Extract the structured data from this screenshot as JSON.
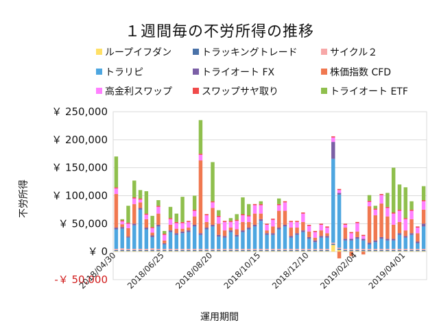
{
  "chart_data": {
    "type": "bar",
    "stacked": true,
    "title": "１週間毎の不労所得の推移",
    "xlabel": "運用期間",
    "ylabel": "不労所得",
    "ylim": [
      -50000,
      250000
    ],
    "yticks": [
      {
        "value": 250000,
        "label": "￥ 250,000"
      },
      {
        "value": 200000,
        "label": "￥ 200,000"
      },
      {
        "value": 150000,
        "label": "￥ 150,000"
      },
      {
        "value": 100000,
        "label": "￥ 100,000"
      },
      {
        "value": 50000,
        "label": "￥ 50,000"
      },
      {
        "value": 0,
        "label": "￥ 0"
      },
      {
        "value": -50000,
        "label": "-￥ 50,000"
      }
    ],
    "grid": true,
    "legend_position": "top",
    "xtick_labels": [
      {
        "index": 0,
        "label": "2018/04/30"
      },
      {
        "index": 8,
        "label": "2018/06/25"
      },
      {
        "index": 16,
        "label": "2018/08/20"
      },
      {
        "index": 24,
        "label": "2018/10/15"
      },
      {
        "index": 32,
        "label": "2018/12/10"
      },
      {
        "index": 40,
        "label": "2019/02/04"
      },
      {
        "index": 48,
        "label": "2019/04/01"
      }
    ],
    "categories": [
      "2018/04/30",
      "2018/05/07",
      "2018/05/14",
      "2018/05/21",
      "2018/05/28",
      "2018/06/04",
      "2018/06/11",
      "2018/06/18",
      "2018/06/25",
      "2018/07/02",
      "2018/07/09",
      "2018/07/16",
      "2018/07/23",
      "2018/07/30",
      "2018/08/06",
      "2018/08/13",
      "2018/08/20",
      "2018/08/27",
      "2018/09/03",
      "2018/09/10",
      "2018/09/17",
      "2018/09/24",
      "2018/10/01",
      "2018/10/08",
      "2018/10/15",
      "2018/10/22",
      "2018/10/29",
      "2018/11/05",
      "2018/11/12",
      "2018/11/19",
      "2018/11/26",
      "2018/12/03",
      "2018/12/10",
      "2018/12/17",
      "2018/12/24",
      "2018/12/31",
      "2019/01/07",
      "2019/01/14",
      "2019/01/21",
      "2019/01/28",
      "2019/02/04",
      "2019/02/11",
      "2019/02/18",
      "2019/02/25",
      "2019/03/04",
      "2019/03/11",
      "2019/03/18",
      "2019/03/25",
      "2019/04/01",
      "2019/04/08",
      "2019/04/15",
      "2019/04/22"
    ],
    "series": [
      {
        "name": "ループイフダン",
        "color": "#ffe066",
        "values": [
          1000,
          1000,
          1000,
          1000,
          1000,
          1000,
          1000,
          1000,
          1000,
          1000,
          1000,
          1000,
          1000,
          1000,
          1000,
          1000,
          1000,
          1000,
          1000,
          1000,
          1000,
          1000,
          1000,
          1000,
          1000,
          1000,
          1000,
          1000,
          1000,
          1000,
          1000,
          1000,
          1000,
          1000,
          1000,
          1000,
          12000,
          3000,
          1000,
          1000,
          1000,
          1000,
          1000,
          1000,
          1000,
          1000,
          1000,
          1000,
          1000,
          1000,
          1000,
          1000
        ]
      },
      {
        "name": "トラッキングトレード",
        "color": "#4a72a8",
        "values": [
          2000,
          2000,
          2000,
          2000,
          2000,
          2000,
          2000,
          2000,
          2000,
          2000,
          2000,
          2000,
          2000,
          2000,
          2000,
          2000,
          2000,
          2000,
          2000,
          2000,
          2000,
          2000,
          2000,
          2000,
          2000,
          2000,
          2000,
          2000,
          2000,
          2000,
          2000,
          2000,
          2000,
          2000,
          2000,
          2000,
          2000,
          2000,
          2000,
          2000,
          2000,
          2000,
          2000,
          2000,
          2000,
          2000,
          2000,
          2000,
          2000,
          2000,
          2000,
          2000
        ]
      },
      {
        "name": "サイクル２",
        "color": "#f7a8a8",
        "values": [
          2000,
          3000,
          2000,
          2000,
          2000,
          2000,
          3000,
          2000,
          2000,
          2000,
          2000,
          2000,
          2000,
          2000,
          2000,
          2000,
          2000,
          2000,
          2000,
          2000,
          2000,
          2000,
          2000,
          2000,
          2000,
          2000,
          2000,
          2000,
          2000,
          2000,
          2000,
          2000,
          2000,
          2000,
          2000,
          2000,
          2000,
          2000,
          2000,
          2000,
          2000,
          2000,
          2000,
          2000,
          2000,
          2000,
          2000,
          2000,
          2000,
          2000,
          2000,
          2000
        ]
      },
      {
        "name": "トラリピ",
        "color": "#4da6e0",
        "values": [
          35000,
          35000,
          20000,
          42000,
          70000,
          35000,
          20000,
          40000,
          8000,
          30000,
          25000,
          28000,
          30000,
          40000,
          25000,
          35000,
          40000,
          22000,
          20000,
          30000,
          22000,
          30000,
          35000,
          40000,
          50000,
          25000,
          25000,
          35000,
          40000,
          20000,
          25000,
          30000,
          18000,
          12000,
          20000,
          20000,
          150000,
          95000,
          15000,
          15000,
          18000,
          15000,
          8000,
          12000,
          18000,
          15000,
          15000,
          25000,
          20000,
          25000,
          10000,
          40000
        ]
      },
      {
        "name": "トライオート FX",
        "color": "#7b5fa6",
        "values": [
          3000,
          3000,
          2000,
          3000,
          3000,
          3000,
          3000,
          3000,
          2000,
          3000,
          3000,
          3000,
          3000,
          3000,
          3000,
          3000,
          3000,
          3000,
          3000,
          3000,
          3000,
          3000,
          3000,
          3000,
          3000,
          3000,
          3000,
          3000,
          3000,
          3000,
          3000,
          3000,
          3000,
          3000,
          3000,
          3000,
          30000,
          3000,
          3000,
          3000,
          3000,
          3000,
          3000,
          3000,
          3000,
          3000,
          3000,
          3000,
          3000,
          3000,
          3000,
          5000
        ]
      },
      {
        "name": "株価指数 CFD",
        "color": "#f07850",
        "values": [
          60000,
          5000,
          15000,
          35000,
          10000,
          15000,
          5000,
          20000,
          5000,
          10000,
          8000,
          5000,
          5000,
          15000,
          130000,
          10000,
          30000,
          20000,
          10000,
          5000,
          10000,
          15000,
          10000,
          20000,
          10000,
          5000,
          12000,
          30000,
          25000,
          15000,
          10000,
          15000,
          10000,
          5000,
          10000,
          5000,
          0,
          -12000,
          20000,
          -8000,
          10000,
          -5000,
          65000,
          45000,
          60000,
          40000,
          25000,
          20000,
          10000,
          25000,
          15000,
          25000
        ]
      },
      {
        "name": "高金利スワップ",
        "color": "#ff80ff",
        "values": [
          10000,
          5000,
          8000,
          10000,
          5000,
          8000,
          8000,
          12000,
          10000,
          10000,
          10000,
          10000,
          10000,
          10000,
          10000,
          12000,
          10000,
          12000,
          15000,
          10000,
          15000,
          12000,
          10000,
          15000,
          15000,
          10000,
          12000,
          10000,
          15000,
          10000,
          10000,
          15000,
          10000,
          10000,
          10000,
          10000,
          8000,
          5000,
          5000,
          10000,
          15000,
          5000,
          8000,
          10000,
          15000,
          15000,
          20000,
          20000,
          20000,
          15000,
          10000,
          15000
        ]
      },
      {
        "name": "スワップサヤ取り",
        "color": "#f04a4a",
        "values": [
          2000,
          2000,
          2000,
          2000,
          2000,
          2000,
          2000,
          2000,
          2000,
          2000,
          2000,
          2000,
          2000,
          2000,
          2000,
          2000,
          2000,
          2000,
          2000,
          2000,
          2000,
          2000,
          2000,
          2000,
          2000,
          2000,
          2000,
          2000,
          2000,
          2000,
          2000,
          2000,
          2000,
          2000,
          2000,
          2000,
          2000,
          2000,
          2000,
          2000,
          2000,
          2000,
          2000,
          2000,
          2000,
          2000,
          2000,
          2000,
          2000,
          2000,
          2000,
          2000
        ]
      },
      {
        "name": "トライオート ETF",
        "color": "#8fbf4d",
        "values": [
          55000,
          2000,
          30000,
          30000,
          15000,
          40000,
          20000,
          10000,
          5000,
          20000,
          15000,
          45000,
          0,
          25000,
          60000,
          0,
          70000,
          10000,
          0,
          5000,
          10000,
          30000,
          20000,
          0,
          5000,
          0,
          0,
          10000,
          0,
          0,
          0,
          0,
          0,
          0,
          0,
          0,
          0,
          0,
          0,
          0,
          0,
          0,
          10000,
          5000,
          0,
          25000,
          80000,
          45000,
          55000,
          15000,
          0,
          25000
        ]
      }
    ]
  }
}
